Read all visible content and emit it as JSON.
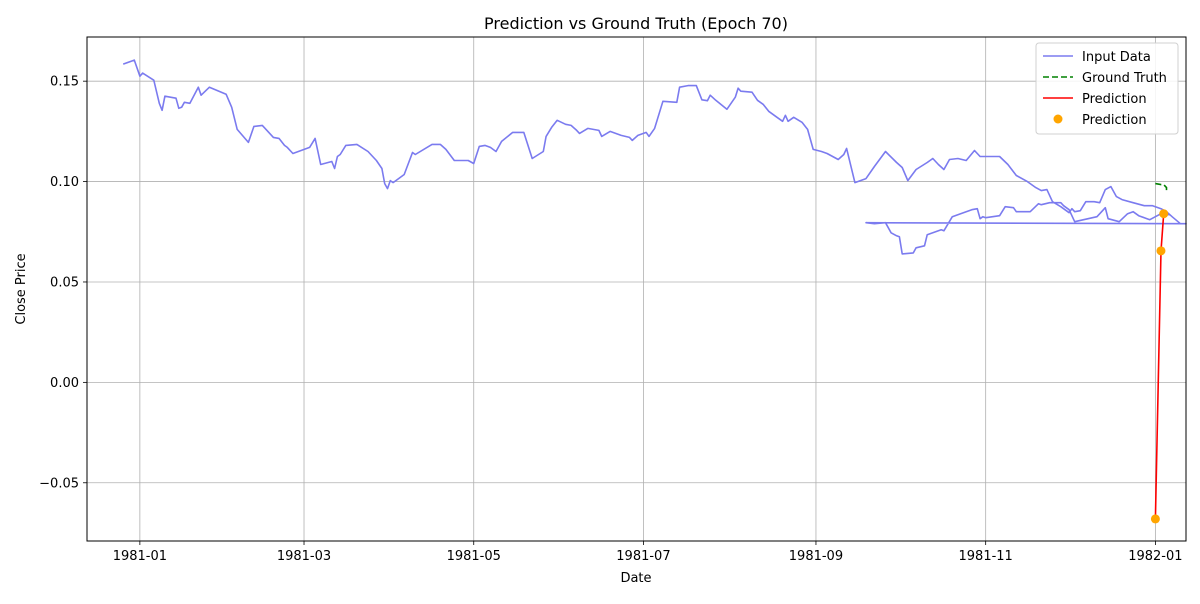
{
  "chart_data": {
    "type": "line",
    "title": "Prediction vs Ground Truth (Epoch 70)",
    "xlabel": "Date",
    "ylabel": "Close Price",
    "x_ticks": [
      "1981-01",
      "1981-03",
      "1981-05",
      "1981-07",
      "1981-09",
      "1981-11",
      "1982-01"
    ],
    "y_ticks": [
      "−0.05",
      "0.00",
      "0.05",
      "0.10",
      "0.15"
    ],
    "xlim": [
      "1980-12-13",
      "1982-01-12"
    ],
    "ylim": [
      -0.079,
      0.172
    ],
    "grid": true,
    "legend_position": "top-right",
    "colors": {
      "input": "#7b7bef",
      "ground_truth": "#008000",
      "prediction": "#ff0000",
      "prediction_points": "#ffa500"
    },
    "series": [
      {
        "name": "Input Data",
        "style": "line",
        "points": [
          [
            "1980-12-26",
            0.1585
          ],
          [
            "1980-12-30",
            0.1605
          ],
          [
            "1981-01-01",
            0.1525
          ],
          [
            "1981-01-02",
            0.154
          ],
          [
            "1981-01-06",
            0.1505
          ],
          [
            "1981-01-08",
            0.139
          ],
          [
            "1981-01-09",
            0.1355
          ],
          [
            "1981-01-10",
            0.1425
          ],
          [
            "1981-01-14",
            0.1415
          ],
          [
            "1981-01-15",
            0.1365
          ],
          [
            "1981-01-16",
            0.137
          ],
          [
            "1981-01-17",
            0.1395
          ],
          [
            "1981-01-19",
            0.139
          ],
          [
            "1981-01-22",
            0.147
          ],
          [
            "1981-01-23",
            0.143
          ],
          [
            "1981-01-26",
            0.147
          ],
          [
            "1981-02-01",
            0.1435
          ],
          [
            "1981-02-03",
            0.137
          ],
          [
            "1981-02-05",
            0.126
          ],
          [
            "1981-02-09",
            0.1195
          ],
          [
            "1981-02-11",
            0.1275
          ],
          [
            "1981-02-14",
            0.128
          ],
          [
            "1981-02-18",
            0.122
          ],
          [
            "1981-02-20",
            0.1215
          ],
          [
            "1981-02-22",
            0.118
          ],
          [
            "1981-02-23",
            0.117
          ],
          [
            "1981-02-25",
            0.114
          ],
          [
            "1981-03-03",
            0.117
          ],
          [
            "1981-03-05",
            0.1215
          ],
          [
            "1981-03-07",
            0.1085
          ],
          [
            "1981-03-11",
            0.11
          ],
          [
            "1981-03-12",
            0.1065
          ],
          [
            "1981-03-13",
            0.1125
          ],
          [
            "1981-03-14",
            0.1135
          ],
          [
            "1981-03-16",
            0.118
          ],
          [
            "1981-03-20",
            0.1185
          ],
          [
            "1981-03-24",
            0.115
          ],
          [
            "1981-03-27",
            0.1105
          ],
          [
            "1981-03-29",
            0.1065
          ],
          [
            "1981-03-30",
            0.099
          ],
          [
            "1981-03-31",
            0.0965
          ],
          [
            "1981-04-01",
            0.1005
          ],
          [
            "1981-04-02",
            0.0995
          ],
          [
            "1981-04-04",
            0.1015
          ],
          [
            "1981-04-06",
            0.1035
          ],
          [
            "1981-04-09",
            0.1145
          ],
          [
            "1981-04-10",
            0.1135
          ],
          [
            "1981-04-16",
            0.1185
          ],
          [
            "1981-04-19",
            0.1185
          ],
          [
            "1981-04-21",
            0.116
          ],
          [
            "1981-04-24",
            0.1105
          ],
          [
            "1981-04-29",
            0.1105
          ],
          [
            "1981-05-01",
            0.109
          ],
          [
            "1981-05-03",
            0.1175
          ],
          [
            "1981-05-05",
            0.118
          ],
          [
            "1981-05-07",
            0.117
          ],
          [
            "1981-05-09",
            0.115
          ],
          [
            "1981-05-11",
            0.12
          ],
          [
            "1981-05-15",
            0.1245
          ],
          [
            "1981-05-19",
            0.1245
          ],
          [
            "1981-05-22",
            0.1115
          ],
          [
            "1981-05-26",
            0.115
          ],
          [
            "1981-05-27",
            0.1225
          ],
          [
            "1981-05-29",
            0.127
          ],
          [
            "1981-05-31",
            0.1305
          ],
          [
            "1981-06-03",
            0.1285
          ],
          [
            "1981-06-05",
            0.128
          ],
          [
            "1981-06-07",
            0.1255
          ],
          [
            "1981-06-08",
            0.124
          ],
          [
            "1981-06-11",
            0.1265
          ],
          [
            "1981-06-15",
            0.1255
          ],
          [
            "1981-06-16",
            0.1225
          ],
          [
            "1981-06-19",
            0.125
          ],
          [
            "1981-06-23",
            0.123
          ],
          [
            "1981-06-26",
            0.122
          ],
          [
            "1981-06-27",
            0.1205
          ],
          [
            "1981-06-29",
            0.123
          ],
          [
            "1981-07-02",
            0.1245
          ],
          [
            "1981-07-03",
            0.1225
          ],
          [
            "1981-07-05",
            0.1265
          ],
          [
            "1981-07-08",
            0.14
          ],
          [
            "1981-07-13",
            0.1395
          ],
          [
            "1981-07-14",
            0.147
          ],
          [
            "1981-07-17",
            0.1478
          ],
          [
            "1981-07-20",
            0.1478
          ],
          [
            "1981-07-22",
            0.1407
          ],
          [
            "1981-07-24",
            0.1403
          ],
          [
            "1981-07-25",
            0.143
          ],
          [
            "1981-07-27",
            0.1405
          ],
          [
            "1981-07-31",
            0.136
          ],
          [
            "1981-08-03",
            0.142
          ],
          [
            "1981-08-04",
            0.1465
          ],
          [
            "1981-08-05",
            0.145
          ],
          [
            "1981-08-09",
            0.1445
          ],
          [
            "1981-08-11",
            0.1405
          ],
          [
            "1981-08-13",
            0.1385
          ],
          [
            "1981-08-15",
            0.135
          ],
          [
            "1981-08-18",
            0.132
          ],
          [
            "1981-08-20",
            0.13
          ],
          [
            "1981-08-21",
            0.133
          ],
          [
            "1981-08-22",
            0.13
          ],
          [
            "1981-08-24",
            0.132
          ],
          [
            "1981-08-27",
            0.1295
          ],
          [
            "1981-08-29",
            0.126
          ],
          [
            "1981-08-31",
            0.116
          ],
          [
            "1981-09-03",
            0.115
          ],
          [
            "1981-09-05",
            0.114
          ],
          [
            "1981-09-09",
            0.111
          ],
          [
            "1981-09-11",
            0.1135
          ],
          [
            "1981-09-12",
            0.1165
          ],
          [
            "1981-09-15",
            0.0995
          ],
          [
            "1981-09-19",
            0.1015
          ],
          [
            "1981-09-22",
            0.1075
          ],
          [
            "1981-09-26",
            0.115
          ],
          [
            "1981-09-30",
            0.1095
          ],
          [
            "1981-10-02",
            0.107
          ],
          [
            "1981-10-04",
            0.1005
          ],
          [
            "1981-10-07",
            0.106
          ],
          [
            "1981-10-11",
            0.1095
          ],
          [
            "1981-10-13",
            0.1115
          ],
          [
            "1981-10-15",
            0.1085
          ],
          [
            "1981-10-17",
            0.106
          ],
          [
            "1981-10-19",
            0.111
          ],
          [
            "1981-10-22",
            0.1115
          ],
          [
            "1981-10-25",
            0.1105
          ],
          [
            "1981-10-28",
            0.1155
          ],
          [
            "1981-10-30",
            0.1125
          ],
          [
            "1981-11-04",
            0.1125
          ],
          [
            "1981-11-06",
            0.1125
          ],
          [
            "1981-11-09",
            0.1085
          ],
          [
            "1981-11-12",
            0.103
          ],
          [
            "1981-11-16",
            0.1
          ],
          [
            "1981-11-19",
            0.097
          ],
          [
            "1981-11-21",
            0.0955
          ],
          [
            "1981-11-23",
            0.096
          ],
          [
            "1981-11-25",
            0.09
          ],
          [
            "1981-11-28",
            0.0875
          ],
          [
            "1981-12-01",
            0.0845
          ],
          [
            "1981-12-02",
            0.0865
          ],
          [
            "1981-12-03",
            0.085
          ],
          [
            "1981-12-05",
            0.0855
          ],
          [
            "1981-12-07",
            0.09
          ],
          [
            "1981-12-10",
            0.09
          ],
          [
            "1981-12-12",
            0.0895
          ],
          [
            "1981-12-14",
            0.096
          ],
          [
            "1981-12-16",
            0.0975
          ],
          [
            "1981-12-18",
            0.0925
          ],
          [
            "1981-12-20",
            0.091
          ],
          [
            "1981-12-24",
            0.0895
          ],
          [
            "1981-12-28",
            0.088
          ],
          [
            "1981-12-31",
            0.088
          ],
          [
            "1982-01-03",
            0.0865
          ],
          [
            "1982-01-05",
            0.085
          ],
          [
            "1982-01-07",
            0.0825
          ],
          [
            "1982-01-10",
            0.079
          ],
          [
            "1982-01-12",
            0.079
          ]
        ]
      }
    ],
    "input_tail": [
      [
        "1981-09-19",
        0.0795
      ],
      [
        "1981-09-22",
        0.079
      ],
      [
        "1981-09-26",
        0.0795
      ],
      [
        "1981-09-28",
        0.0745
      ],
      [
        "1981-09-30",
        0.073
      ],
      [
        "1981-10-01",
        0.0725
      ],
      [
        "1981-10-02",
        0.064
      ],
      [
        "1981-10-06",
        0.0645
      ],
      [
        "1981-10-07",
        0.067
      ],
      [
        "1981-10-10",
        0.068
      ],
      [
        "1981-10-11",
        0.0735
      ],
      [
        "1981-10-14",
        0.075
      ],
      [
        "1981-10-16",
        0.076
      ],
      [
        "1981-10-17",
        0.0755
      ],
      [
        "1981-10-20",
        0.0825
      ],
      [
        "1981-10-23",
        0.084
      ],
      [
        "1981-10-27",
        0.086
      ],
      [
        "1981-10-29",
        0.0865
      ],
      [
        "1981-10-30",
        0.0815
      ],
      [
        "1981-10-31",
        0.0825
      ],
      [
        "1981-11-01",
        0.082
      ],
      [
        "1981-11-06",
        0.083
      ],
      [
        "1981-11-08",
        0.0875
      ],
      [
        "1981-11-11",
        0.087
      ],
      [
        "1981-11-12",
        0.085
      ],
      [
        "1981-11-17",
        0.085
      ],
      [
        "1981-11-20",
        0.089
      ],
      [
        "1981-11-21",
        0.0885
      ],
      [
        "1981-11-24",
        0.0895
      ],
      [
        "1981-11-28",
        0.0895
      ],
      [
        "1981-11-29",
        0.088
      ],
      [
        "1981-12-01",
        0.086
      ],
      [
        "1981-12-03",
        0.08
      ],
      [
        "1981-12-11",
        0.0825
      ],
      [
        "1981-12-14",
        0.087
      ],
      [
        "1981-12-15",
        0.0815
      ],
      [
        "1981-12-19",
        0.08
      ],
      [
        "1981-12-22",
        0.084
      ],
      [
        "1981-12-24",
        0.085
      ],
      [
        "1981-12-26",
        0.083
      ],
      [
        "1981-12-29",
        0.0815
      ],
      [
        "1981-12-30",
        0.081
      ],
      [
        "1982-01-03",
        0.084
      ],
      [
        "1982-01-06",
        0.0835
      ]
    ],
    "ground_truth": {
      "name": "Ground Truth",
      "style": "dashed",
      "points": [
        [
          "1982-01-01",
          0.099
        ],
        [
          "1982-01-03",
          0.0985
        ],
        [
          "1982-01-04",
          0.0985
        ],
        [
          "1982-01-05",
          0.097
        ],
        [
          "1982-01-05",
          0.0945
        ]
      ]
    },
    "prediction": {
      "name": "Prediction",
      "style": "line",
      "points": [
        [
          "1982-01-01",
          -0.068
        ],
        [
          "1982-01-03",
          0.0655
        ],
        [
          "1982-01-04",
          0.084
        ]
      ]
    },
    "prediction_points": {
      "name": "Prediction",
      "style": "scatter",
      "points": [
        [
          "1982-01-01",
          -0.068
        ],
        [
          "1982-01-03",
          0.0655
        ],
        [
          "1982-01-04",
          0.084
        ]
      ]
    }
  }
}
